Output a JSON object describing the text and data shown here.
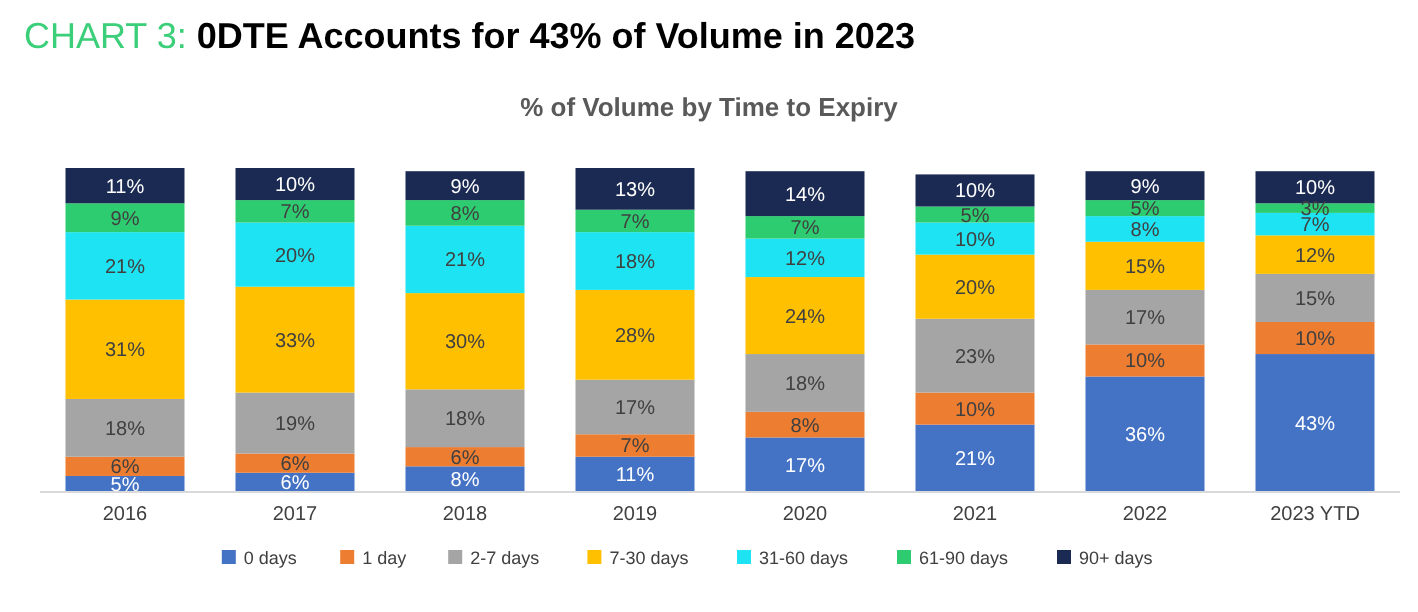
{
  "chart_data": {
    "type": "bar",
    "title": "CHART 3: 0DTE Accounts for 43% of Volume in 2023",
    "subtitle": "% of Volume by Time to Expiry",
    "stacked": true,
    "legend": "bottom",
    "categories": [
      "2016",
      "2017",
      "2018",
      "2019",
      "2020",
      "2021",
      "2022",
      "2023 YTD"
    ],
    "series": [
      {
        "name": "0 days",
        "color": "#4472c4",
        "values": [
          5,
          6,
          8,
          11,
          17,
          21,
          36,
          43
        ],
        "value_labels": [
          "5%",
          "6%",
          "8%",
          "11%",
          "17%",
          "21%",
          "36%",
          "43%"
        ]
      },
      {
        "name": "1 day",
        "color": "#ed7d31",
        "values": [
          6,
          6,
          6,
          7,
          8,
          10,
          10,
          10
        ],
        "value_labels": [
          "6%",
          "6%",
          "6%",
          "7%",
          "8%",
          "10%",
          "10%",
          "10%"
        ]
      },
      {
        "name": "2-7 days",
        "color": "#a5a5a5",
        "values": [
          18,
          19,
          18,
          17,
          18,
          23,
          17,
          15
        ],
        "value_labels": [
          "18%",
          "19%",
          "18%",
          "17%",
          "18%",
          "23%",
          "17%",
          "15%"
        ]
      },
      {
        "name": "7-30 days",
        "color": "#ffc000",
        "values": [
          31,
          33,
          30,
          28,
          24,
          20,
          15,
          12
        ],
        "value_labels": [
          "31%",
          "33%",
          "30%",
          "28%",
          "24%",
          "20%",
          "15%",
          "12%"
        ]
      },
      {
        "name": "31-60 days",
        "color": "#1ee3f2",
        "values": [
          21,
          20,
          21,
          18,
          12,
          10,
          8,
          7
        ],
        "value_labels": [
          "21%",
          "20%",
          "21%",
          "18%",
          "12%",
          "10%",
          "8%",
          "7%"
        ]
      },
      {
        "name": "61-90 days",
        "color": "#2ecc71",
        "values": [
          9,
          7,
          8,
          7,
          7,
          5,
          5,
          3
        ],
        "value_labels": [
          "9%",
          "7%",
          "8%",
          "7%",
          "7%",
          "5%",
          "5%",
          "3%"
        ]
      },
      {
        "name": "90+ days",
        "color": "#1b2a52",
        "values": [
          11,
          10,
          9,
          13,
          14,
          10,
          9,
          10
        ],
        "value_labels": [
          "11%",
          "10%",
          "9%",
          "13%",
          "14%",
          "10%",
          "9%",
          "10%"
        ]
      }
    ]
  }
}
